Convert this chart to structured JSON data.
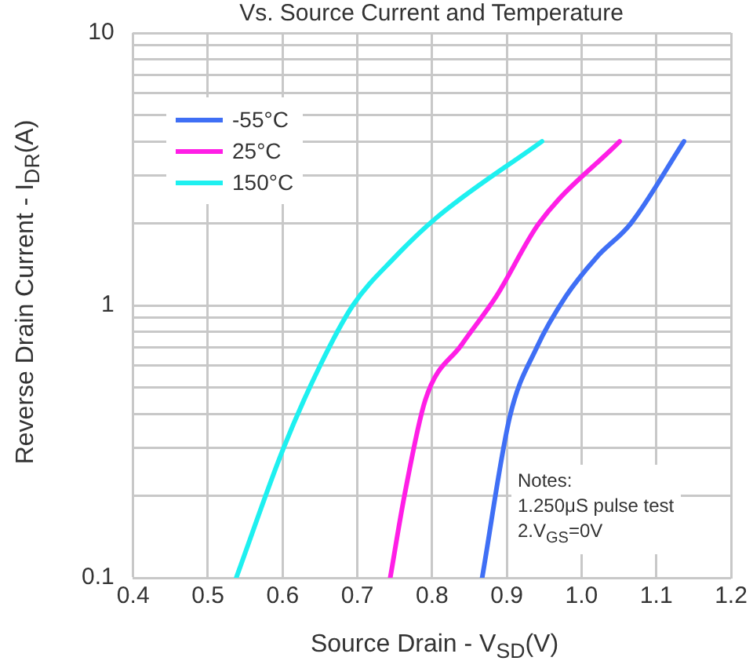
{
  "chart_data": {
    "type": "line",
    "title": "Vs. Source Current and Temperature",
    "xlabel": "Source Drain  -  V$_{SD}$(V)",
    "ylabel": "Reverse Drain Current  -  I$_{DR}$(A)",
    "log": "y",
    "grid": true,
    "legend": "top left",
    "marker": "none",
    "line_style": "solid",
    "xlim": [
      0.4,
      1.2
    ],
    "xticks": [
      0.4,
      0.5,
      0.6,
      0.7,
      0.8,
      0.9,
      {
        "value": 1,
        "label": "1.0"
      },
      1.1,
      1.2
    ],
    "ylim": [
      0.1,
      10
    ],
    "yticks": [
      0.1,
      {
        "value": 0.2,
        "label": null
      },
      {
        "value": 0.3,
        "label": null
      },
      {
        "value": 0.4,
        "label": null
      },
      {
        "value": 0.5,
        "label": null
      },
      {
        "value": 0.6,
        "label": null
      },
      {
        "value": 0.7,
        "label": null
      },
      {
        "value": 0.8,
        "label": null
      },
      {
        "value": 0.9,
        "label": null
      },
      1,
      {
        "value": 2,
        "label": null
      },
      {
        "value": 3,
        "label": null
      },
      {
        "value": 4,
        "label": null
      },
      {
        "value": 5,
        "label": null
      },
      {
        "value": 6,
        "label": null
      },
      {
        "value": 7,
        "label": null
      },
      {
        "value": 8,
        "label": null
      },
      {
        "value": 9,
        "label": null
      },
      10
    ],
    "annotations": [
      "Notes:",
      "1.250μS pulse test",
      "2.V$_{GS}$=0V"
    ],
    "series": [
      {
        "name": "-55°C",
        "color": "#3f6ff5",
        "x": [
          0.867,
          0.904,
          0.94,
          0.979,
          1.02,
          1.066,
          1.137
        ],
        "values": [
          0.1,
          0.39,
          0.7,
          1.08,
          1.5,
          2.0,
          4.0
        ]
      },
      {
        "name": "25°C",
        "color": "#ff1ee6",
        "x": [
          0.744,
          0.763,
          0.791,
          0.84,
          0.886,
          0.943,
          1.051
        ],
        "values": [
          0.1,
          0.2,
          0.45,
          0.72,
          1.08,
          2.0,
          4.0
        ]
      },
      {
        "name": "150°C",
        "color": "#1ef0f0",
        "x": [
          0.538,
          0.601,
          0.65,
          0.694,
          0.75,
          0.806,
          0.947
        ],
        "values": [
          0.1,
          0.298,
          0.6,
          1.0,
          1.5,
          2.1,
          4.0
        ]
      }
    ]
  }
}
